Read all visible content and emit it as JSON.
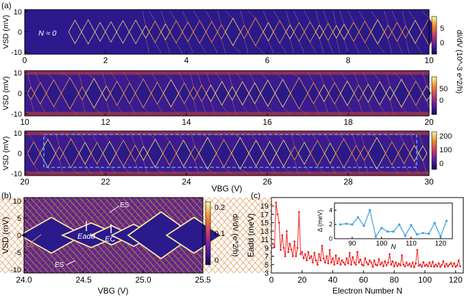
{
  "panel_labels": {
    "a": "(a)",
    "b": "(b)",
    "c": "(c)"
  },
  "panel_a": {
    "ylabel": "VSD (mV)",
    "y_ticks": [
      "10",
      "0",
      "-10"
    ],
    "xlabel": "VBG (V)",
    "colorbar_label": "dI/dV (10^-3 e^2/h)",
    "annotation": "N ≈ 0",
    "strips": [
      {
        "x_ticks": [
          "0",
          "2",
          "4",
          "6",
          "8",
          "10"
        ],
        "colorbar_ticks": [
          "5",
          "0"
        ]
      },
      {
        "x_ticks": [
          "10",
          "12",
          "14",
          "16",
          "18",
          "20"
        ],
        "colorbar_ticks": [
          "50",
          "0"
        ]
      },
      {
        "x_ticks": [
          "20",
          "22",
          "24",
          "26",
          "28",
          "30"
        ],
        "colorbar_ticks": [
          "200",
          "100",
          "0"
        ]
      }
    ]
  },
  "panel_b": {
    "ylabel": "VSD (mV)",
    "y_ticks": [
      "10",
      "5",
      "0",
      "-5",
      "-10"
    ],
    "xlabel": "VBG (V)",
    "x_ticks": [
      "24.0",
      "24.5",
      "25.0",
      "25.5"
    ],
    "colorbar_label": "dI/dV (e^2/h)",
    "colorbar_ticks": [
      "0.2",
      "0.1",
      "0"
    ],
    "annotations": {
      "es_top": "ES",
      "es_bottom": "ES",
      "ls": "LS",
      "eadd": "Eadd",
      "ec": "EC"
    }
  },
  "chart_data": {
    "type": "line",
    "title": "",
    "xlabel": "Electron Number N",
    "ylabel": "Eadd (meV)",
    "xlim": [
      0,
      125
    ],
    "ylim": [
      3,
      21
    ],
    "x_ticks": [
      "0",
      "20",
      "40",
      "60",
      "80",
      "100",
      "120"
    ],
    "y_ticks": [
      "3",
      "5",
      "7",
      "9",
      "11",
      "13",
      "15",
      "17",
      "19"
    ],
    "x": [
      1,
      2,
      3,
      4,
      5,
      6,
      7,
      8,
      9,
      10,
      11,
      12,
      13,
      14,
      15,
      16,
      17,
      18,
      19,
      20,
      21,
      22,
      23,
      24,
      25,
      26,
      27,
      28,
      29,
      30,
      31,
      32,
      33,
      34,
      35,
      36,
      37,
      38,
      39,
      40,
      41,
      42,
      43,
      44,
      45,
      46,
      47,
      48,
      49,
      50,
      51,
      52,
      53,
      54,
      55,
      56,
      57,
      58,
      59,
      60,
      61,
      62,
      63,
      64,
      65,
      66,
      67,
      68,
      69,
      70,
      71,
      72,
      73,
      74,
      75,
      76,
      77,
      78,
      79,
      80,
      81,
      82,
      83,
      84,
      85,
      86,
      87,
      88,
      89,
      90,
      91,
      92,
      93,
      94,
      95,
      96,
      97,
      98,
      99,
      100,
      101,
      102,
      103,
      104,
      105,
      106,
      107,
      108,
      109,
      110,
      111,
      112,
      113,
      114,
      115,
      116,
      117,
      118,
      119,
      120,
      121,
      122,
      123
    ],
    "values": [
      10,
      9.2,
      19.8,
      17,
      15,
      8.5,
      12,
      9,
      7,
      13,
      8,
      10,
      8.6,
      7,
      10.5,
      7,
      9,
      17.5,
      7.5,
      8,
      6.5,
      7.5,
      6,
      8,
      6.5,
      7,
      5.5,
      7.8,
      6,
      5,
      7.5,
      6,
      9.5,
      6.5,
      5.5,
      7,
      5.3,
      8.5,
      5.5,
      6.5,
      5,
      7.2,
      5.3,
      6.5,
      5,
      6,
      5.5,
      5,
      6.5,
      5.3,
      7.8,
      5,
      6.8,
      5.5,
      5,
      8,
      5.5,
      6.2,
      5,
      4.8,
      6.5,
      5.5,
      5,
      6,
      5.5,
      4.5,
      6,
      5,
      4.8,
      6.3,
      5,
      5.5,
      4.6,
      5.8,
      4.8,
      5.5,
      7.5,
      5,
      5.8,
      4.6,
      5.5,
      4.7,
      5.2,
      4.8,
      7.2,
      5,
      4.6,
      5.5,
      4.8,
      5.2,
      4.5,
      5.5,
      4.4,
      5.3,
      8.5,
      4.7,
      5,
      4.5,
      5.6,
      4.7,
      5,
      4.6,
      5.5,
      4.6,
      5.7,
      4.5,
      5,
      4.6,
      5.3,
      4.5,
      4.9,
      5.8,
      4.5,
      5.2,
      4.6,
      5,
      5.4,
      4.6,
      5.3,
      4.5,
      4.8,
      6,
      4.6
    ],
    "inset": {
      "xlabel": "N",
      "ylabel": "Δ (meV)",
      "xlim": [
        84,
        124
      ],
      "ylim": [
        0,
        5
      ],
      "x_ticks": [
        "90",
        "100",
        "110",
        "120"
      ],
      "y_ticks": [
        "4",
        "2",
        "0"
      ],
      "x": [
        86,
        88,
        90,
        92,
        94,
        96,
        98,
        100,
        102,
        104,
        106,
        108,
        110,
        112,
        114,
        116,
        118,
        120,
        122
      ],
      "values": [
        2.0,
        2.1,
        2.0,
        3.0,
        1.8,
        4.0,
        0.3,
        1.5,
        1.0,
        1.0,
        2.0,
        0.4,
        1.9,
        0.6,
        0.8,
        0.7,
        2.2,
        0.3,
        2.5
      ]
    }
  },
  "colors": {
    "line": "#ee2222",
    "inset_line": "#33a0e0",
    "dash": "#5a9aff"
  }
}
